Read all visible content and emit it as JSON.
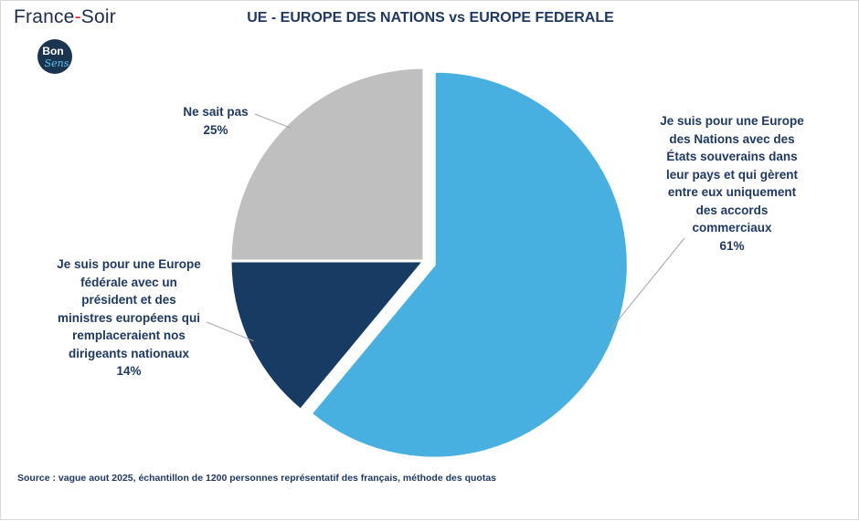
{
  "brand": {
    "part1": "France",
    "dash": "-",
    "part2": "Soir"
  },
  "logo": {
    "line1": "Bon",
    "line2": "Sens"
  },
  "chart_data": {
    "type": "pie",
    "title": "UE - EUROPE DES NATIONS vs EUROPE FEDERALE",
    "slices": [
      {
        "label_lines": [
          "Je suis pour une Europe",
          "des Nations avec des",
          "États souverains dans",
          "leur pays et qui gèrent",
          "entre eux uniquement",
          "des accords",
          "commerciaux"
        ],
        "value": 61,
        "value_label": "61%",
        "color": "#48b0e0",
        "exploded": true
      },
      {
        "label_lines": [
          "Je suis pour une Europe",
          "fédérale avec un",
          "président et des",
          "ministres européens qui",
          "remplaceraient nos",
          "dirigeants nationaux"
        ],
        "value": 14,
        "value_label": "14%",
        "color": "#173b62",
        "exploded": false
      },
      {
        "label_lines": [
          "Ne sait pas"
        ],
        "value": 25,
        "value_label": "25%",
        "color": "#bfbfbf",
        "exploded": false
      }
    ],
    "legend": "none"
  },
  "source": "Source : vague aout 2025, échantillon de 1200 personnes représentatif des français, méthode des quotas"
}
